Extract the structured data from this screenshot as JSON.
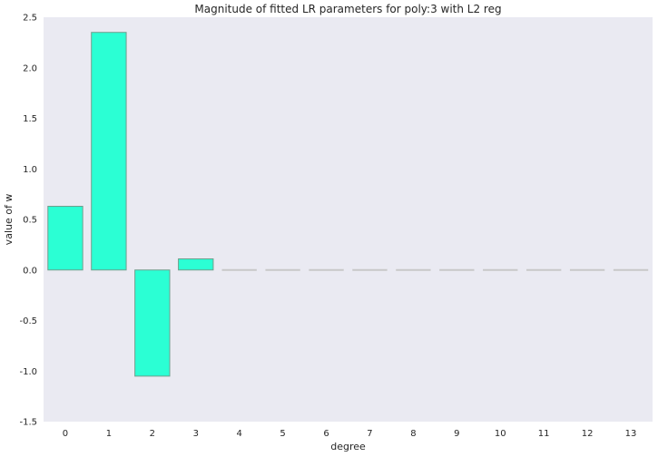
{
  "chart_data": {
    "type": "bar",
    "title": "Magnitude of fitted LR parameters for poly:3 with L2 reg",
    "xlabel": "degree",
    "ylabel": "value of w",
    "categories": [
      "0",
      "1",
      "2",
      "3",
      "4",
      "5",
      "6",
      "7",
      "8",
      "9",
      "10",
      "11",
      "12",
      "13"
    ],
    "values": [
      0.63,
      2.35,
      -1.05,
      0.11,
      0,
      0,
      0,
      0,
      0,
      0,
      0,
      0,
      0,
      0
    ],
    "ylim": [
      -1.5,
      2.5
    ],
    "yticks": [
      "2.5",
      "2.0",
      "1.5",
      "1.0",
      "0.5",
      "0.0",
      "-0.5",
      "-1.0",
      "-1.5"
    ],
    "grid": false,
    "colors": {
      "bar_fill": "#2bffd4",
      "bar_edge": "#6f9e8c",
      "zero_bar": "#c8c8c8",
      "plot_bg": "#eaeaf2"
    }
  }
}
